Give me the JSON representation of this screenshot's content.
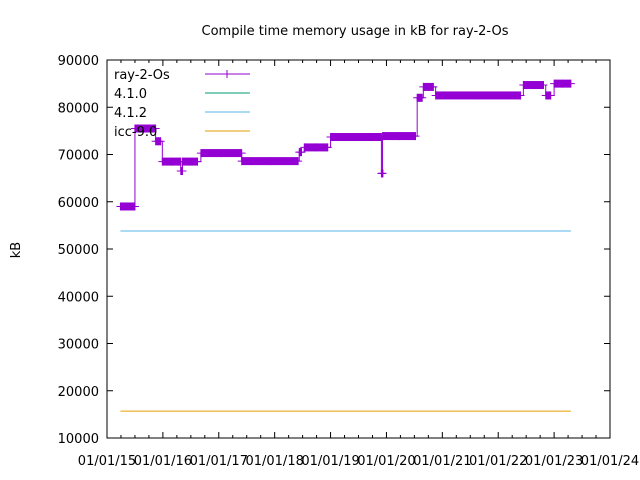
{
  "chart_data": {
    "type": "line",
    "title": "Compile time memory usage in kB for ray-2-Os",
    "xlabel": "",
    "ylabel": "kB",
    "xlim": [
      2015,
      2024
    ],
    "ylim": [
      10000,
      90000
    ],
    "yticks": [
      10000,
      20000,
      30000,
      40000,
      50000,
      60000,
      70000,
      80000,
      90000
    ],
    "xticks": [
      2015,
      2016,
      2017,
      2018,
      2019,
      2020,
      2021,
      2022,
      2023,
      2024
    ],
    "xtick_labels": [
      "01/01/15",
      "01/01/16",
      "01/01/17",
      "01/01/18",
      "01/01/19",
      "01/01/20",
      "01/01/21",
      "01/01/22",
      "01/01/23",
      "01/01/24"
    ],
    "legend_position": "top-left",
    "series": [
      {
        "name": "ray-2-Os",
        "color": "#9400d3",
        "style": "linespoints",
        "steps": [
          [
            2015.24,
            2015.5,
            59000
          ],
          [
            2015.5,
            2015.87,
            75500
          ],
          [
            2015.87,
            2015.96,
            72800
          ],
          [
            2015.99,
            2016.32,
            68500
          ],
          [
            2016.32,
            2016.35,
            66500
          ],
          [
            2016.35,
            2016.62,
            68500
          ],
          [
            2016.68,
            2017.41,
            70300
          ],
          [
            2017.41,
            2018.42,
            68600
          ],
          [
            2018.44,
            2018.48,
            70500
          ],
          [
            2018.53,
            2018.95,
            71500
          ],
          [
            2019.0,
            2019.91,
            73700
          ],
          [
            2019.91,
            2019.93,
            66000
          ],
          [
            2019.93,
            2020.52,
            73900
          ],
          [
            2020.55,
            2020.64,
            82000
          ],
          [
            2020.66,
            2020.84,
            84300
          ],
          [
            2020.88,
            2022.4,
            82500
          ],
          [
            2022.45,
            2022.81,
            84700
          ],
          [
            2022.85,
            2022.94,
            82500
          ],
          [
            2023.0,
            2023.3,
            85000
          ]
        ]
      },
      {
        "name": "4.1.0",
        "color": "#009e73",
        "style": "line",
        "value": null
      },
      {
        "name": "4.1.2",
        "color": "#56b4e9",
        "style": "line",
        "value": 53800,
        "x_range": [
          2015.24,
          2023.3
        ]
      },
      {
        "name": "icc-9.0",
        "color": "#e69f00",
        "style": "line",
        "value": 15700,
        "x_range": [
          2015.24,
          2023.3
        ]
      }
    ]
  }
}
